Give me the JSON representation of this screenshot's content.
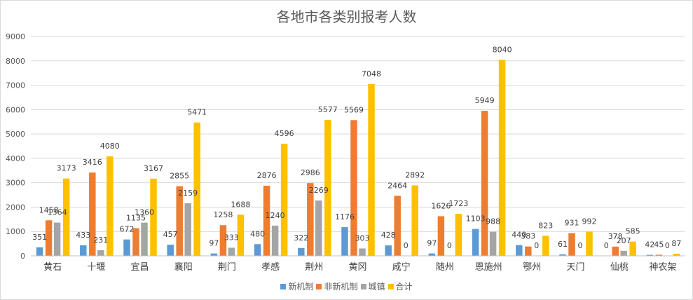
{
  "chart_data": {
    "type": "bar",
    "title": "各地市各类别报考人数",
    "xlabel": "",
    "ylabel": "",
    "ylim": [
      0,
      9000
    ],
    "yticks": [
      0,
      1000,
      2000,
      3000,
      4000,
      5000,
      6000,
      7000,
      8000,
      9000
    ],
    "grid": true,
    "legend_position": "bottom",
    "categories": [
      "黄石",
      "十堰",
      "宜昌",
      "襄阳",
      "荆门",
      "孝感",
      "荆州",
      "黄冈",
      "咸宁",
      "随州",
      "恩施州",
      "鄂州",
      "天门",
      "仙桃",
      "神农架"
    ],
    "series": [
      {
        "name": "新机制",
        "color": "#5b9bd5",
        "values": [
          351,
          433,
          672,
          457,
          97,
          480,
          322,
          1176,
          428,
          97,
          1103,
          440,
          61,
          0,
          42
        ]
      },
      {
        "name": "非新机制",
        "color": "#ed7d31",
        "values": [
          1458,
          3416,
          1135,
          2855,
          1258,
          2876,
          2986,
          5569,
          2464,
          1626,
          5949,
          383,
          931,
          378,
          45
        ]
      },
      {
        "name": "城镇",
        "color": "#a5a5a5",
        "values": [
          1364,
          231,
          1360,
          2159,
          333,
          1240,
          2269,
          303,
          0,
          0,
          988,
          0,
          0,
          207,
          0
        ]
      },
      {
        "name": "合计",
        "color": "#ffc000",
        "values": [
          3173,
          4080,
          3167,
          5471,
          1688,
          4596,
          5577,
          7048,
          2892,
          1723,
          8040,
          823,
          992,
          585,
          87
        ]
      }
    ]
  }
}
